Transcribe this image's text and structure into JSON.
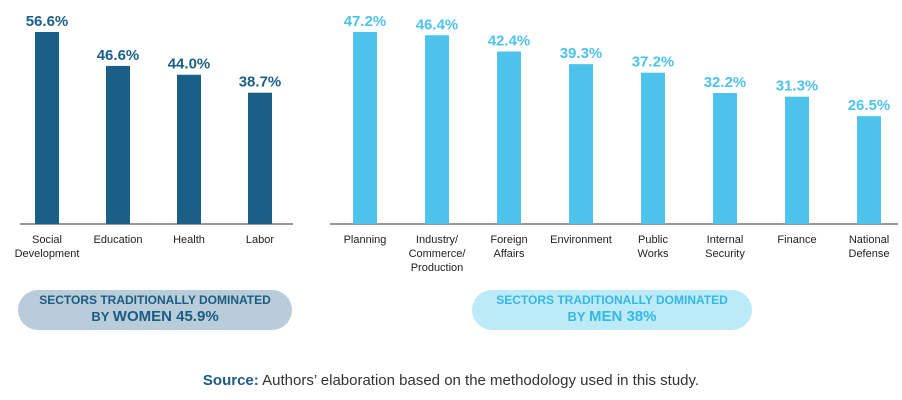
{
  "chart_data": [
    {
      "type": "bar",
      "group": "women",
      "color": "#1a5f85",
      "categories": [
        [
          "Social",
          "Development"
        ],
        [
          "Education"
        ],
        [
          "Health"
        ],
        [
          "Labor"
        ]
      ],
      "values": [
        56.6,
        46.6,
        44.0,
        38.7
      ],
      "labels": [
        "56.6%",
        "46.6%",
        "44.0%",
        "38.7%"
      ],
      "ylim": [
        0,
        60
      ]
    },
    {
      "type": "bar",
      "group": "men",
      "color": "#4dc3ec",
      "categories": [
        [
          "Planning"
        ],
        [
          "Industry/",
          "Commerce/",
          "Production"
        ],
        [
          "Foreign",
          "Affairs"
        ],
        [
          "Environment"
        ],
        [
          "Public",
          "Works"
        ],
        [
          "Internal",
          "Security"
        ],
        [
          "Finance"
        ],
        [
          "National",
          "Defense"
        ]
      ],
      "values": [
        47.2,
        46.4,
        42.4,
        39.3,
        37.2,
        32.2,
        31.3,
        26.5
      ],
      "labels": [
        "47.2%",
        "46.4%",
        "42.4%",
        "39.3%",
        "37.2%",
        "32.2%",
        "31.3%",
        "26.5%"
      ],
      "ylim": [
        0,
        60
      ]
    }
  ],
  "summary": {
    "women": {
      "line1": "SECTORS TRADITIONALLY DOMINATED",
      "by": "BY",
      "rest": "WOMEN 45.9%"
    },
    "men": {
      "line1": "SECTORS TRADITIONALLY DOMINATED",
      "by": "BY",
      "rest": "MEN 38%"
    }
  },
  "source": {
    "label": "Source:",
    "text": "Authors’ elaboration based on the methodology used in this study."
  }
}
